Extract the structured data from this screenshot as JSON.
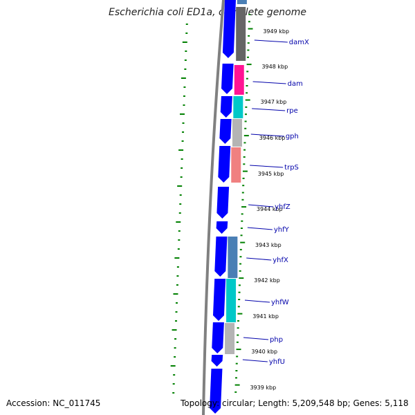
{
  "title": "Escherichia coli ED1a, complete genome",
  "accession": "Accession: NC_011745",
  "summary": "Topology: circular; Length: 5,209,548 bp; Genes: 5,118",
  "colors": {
    "cds": "#0000ff",
    "backbone": "#808080",
    "tick": "#008000",
    "label_line": "#0000aa",
    "cog_steelblue": "#4a7fb5",
    "cog_darkgray": "#666666",
    "cog_magenta": "#ff1493",
    "cog_cyan": "#00c8c8",
    "cog_lightgray": "#b4b4b4",
    "cog_salmon": "#f08080"
  },
  "positions_kbp": [
    "3949 kbp",
    "3948 kbp",
    "3947 kbp",
    "3946 kbp",
    "3945 kbp",
    "3944 kbp",
    "3943 kbp",
    "3942 kbp",
    "3941 kbp",
    "3940 kbp",
    "3939 kbp"
  ],
  "genes": [
    {
      "name": "damX",
      "strand": "-",
      "cog_color": "#666666"
    },
    {
      "name": "dam",
      "strand": "-",
      "cog_color": "#ff1493"
    },
    {
      "name": "rpe",
      "strand": "-",
      "cog_color": "#00c8c8"
    },
    {
      "name": "gph",
      "strand": "-",
      "cog_color": "#b4b4b4"
    },
    {
      "name": "trpS",
      "strand": "-",
      "cog_color": "#f08080"
    },
    {
      "name": "yhfZ",
      "strand": "-",
      "cog_color": ""
    },
    {
      "name": "yhfY",
      "strand": "-",
      "cog_color": ""
    },
    {
      "name": "yhfX",
      "strand": "-",
      "cog_color": "#4a7fb5"
    },
    {
      "name": "yhfW",
      "strand": "-",
      "cog_color": "#00c8c8"
    },
    {
      "name": "php",
      "strand": "-",
      "cog_color": "#b4b4b4"
    },
    {
      "name": "yhfU",
      "strand": "-",
      "cog_color": ""
    }
  ]
}
